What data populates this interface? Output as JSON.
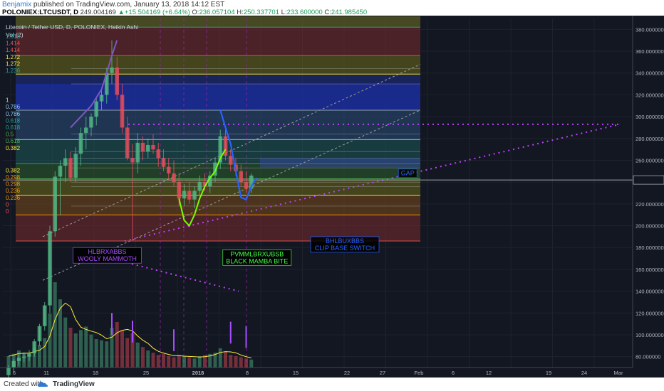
{
  "header": {
    "author": "Benjamix",
    "published_text": "published on TradingView.com, January 13, 2018 14:12 EST",
    "symbol": "POLONIEX:LTCUSDT, D",
    "price": "249.004169",
    "change": "+15.504169 (+6.64%)",
    "ohlc_label_o": "O:",
    "ohlc_o": "236.057104",
    "ohlc_label_h": "H:",
    "ohlc_h": "250.337701",
    "ohlc_label_l": "L:",
    "ohlc_l": "233.600000",
    "ohlc_label_c": "C:",
    "ohlc_c": "241.985450"
  },
  "footer": {
    "created_with": "Created with",
    "brand": "TradingView"
  },
  "chart_data": {
    "type": "candlestick",
    "title": "Litecoin / Tether USD, D, POLONIEX, Heikin Ashi",
    "indicator": "Vol (2)",
    "ylim": [
      70,
      390
    ],
    "y_ticks": [
      "380.000000",
      "360.000000",
      "340.000000",
      "320.000000",
      "300.000000",
      "280.000000",
      "260.000000",
      "240.000000",
      "220.000000",
      "200.000000",
      "180.000000",
      "160.000000",
      "140.000000",
      "120.000000",
      "100.000000",
      "80.000000"
    ],
    "y_tick_values": [
      380,
      360,
      340,
      320,
      300,
      280,
      260,
      240,
      220,
      200,
      180,
      160,
      140,
      120,
      100,
      80
    ],
    "x_ticks": [
      "6",
      "11",
      "18",
      "25",
      "2018",
      "8",
      "15",
      "22",
      "27",
      "Feb",
      "6",
      "12",
      "19",
      "24",
      "Mar"
    ],
    "last_price_level": 242,
    "fib_labels_left": [
      "1.618",
      "1.414",
      "1.414",
      "1.272",
      "1.272",
      "1.236",
      "1",
      "0.786",
      "0.786",
      "0.618",
      "0.618",
      "0.5",
      "0.618",
      "0.382",
      "0.382",
      "0.298",
      "0.298",
      "0.236",
      "0.236",
      "0",
      "0"
    ],
    "fib_label_colors": [
      "#26a69a",
      "#ef5350",
      "#ef5350",
      "#ffeb3b",
      "#ffeb3b",
      "#26a69a",
      "#cfd8dc",
      "#90caf9",
      "#90caf9",
      "#26a69a",
      "#26a69a",
      "#4caf50",
      "#4caf50",
      "#ffeb3b",
      "#ffeb3b",
      "#ff9800",
      "#ff9800",
      "#ff9800",
      "#ff9800",
      "#ef5350",
      "#ef5350"
    ],
    "fib_levels_a": [
      {
        "label": "0",
        "value": 186,
        "color": "#ef5350"
      },
      {
        "label": "0.236",
        "value": 210,
        "color": "#ff9800"
      },
      {
        "label": "0.382",
        "value": 228,
        "color": "#ffeb3b"
      },
      {
        "label": "0.5",
        "value": 243,
        "color": "#4caf50"
      },
      {
        "label": "0.618",
        "value": 257,
        "color": "#26a69a"
      },
      {
        "label": "0.786",
        "value": 279,
        "color": "#90caf9"
      },
      {
        "label": "1",
        "value": 306,
        "color": "#cfd8dc"
      },
      {
        "label": "1.272",
        "value": 339,
        "color": "#ffeb3b"
      },
      {
        "label": "1.414",
        "value": 356,
        "color": "#ef5350"
      },
      {
        "label": "1.618",
        "value": 382,
        "color": "#26a69a"
      }
    ],
    "fib_levels_b": [
      {
        "value": 218
      },
      {
        "value": 236
      },
      {
        "value": 240
      },
      {
        "value": 253
      },
      {
        "value": 262
      },
      {
        "value": 268
      },
      {
        "value": 284
      },
      {
        "value": 330
      },
      {
        "value": 344
      }
    ],
    "annotations": [
      {
        "line1": "HLBRXABBS",
        "line2": "WOOLY MAMMOTH",
        "color": "#a64dff",
        "x_index": 18,
        "price": 180
      },
      {
        "line1": "PVMMLBRXUBSB",
        "line2": "BLACK MAMBA BITE",
        "color": "#44ff44",
        "x_index": 47,
        "price": 178
      },
      {
        "line1": "BHLBUXBBS",
        "line2": "CLIP BASE SWITCH",
        "color": "#2962ff",
        "x_index": 64,
        "price": 190
      },
      {
        "line1": "GAP",
        "line2": "",
        "color": "#2962ff",
        "x_index": 81,
        "price": 252
      }
    ],
    "candles_days": 77,
    "candles": [
      {
        "o": 63,
        "h": 72,
        "l": 58,
        "c": 70
      },
      {
        "o": 70,
        "h": 78,
        "l": 66,
        "c": 76
      },
      {
        "o": 76,
        "h": 82,
        "l": 72,
        "c": 79
      },
      {
        "o": 79,
        "h": 84,
        "l": 75,
        "c": 80
      },
      {
        "o": 80,
        "h": 86,
        "l": 76,
        "c": 83
      },
      {
        "o": 83,
        "h": 96,
        "l": 80,
        "c": 94
      },
      {
        "o": 94,
        "h": 110,
        "l": 90,
        "c": 108
      },
      {
        "o": 108,
        "h": 130,
        "l": 104,
        "c": 127
      },
      {
        "o": 127,
        "h": 200,
        "l": 120,
        "c": 195
      },
      {
        "o": 195,
        "h": 250,
        "l": 190,
        "c": 245
      },
      {
        "o": 245,
        "h": 260,
        "l": 210,
        "c": 255
      },
      {
        "o": 255,
        "h": 270,
        "l": 240,
        "c": 262
      },
      {
        "o": 262,
        "h": 268,
        "l": 240,
        "c": 244
      },
      {
        "o": 244,
        "h": 272,
        "l": 240,
        "c": 266
      },
      {
        "o": 266,
        "h": 290,
        "l": 255,
        "c": 285
      },
      {
        "o": 285,
        "h": 300,
        "l": 270,
        "c": 290
      },
      {
        "o": 290,
        "h": 303,
        "l": 282,
        "c": 300
      },
      {
        "o": 300,
        "h": 318,
        "l": 292,
        "c": 314
      },
      {
        "o": 314,
        "h": 325,
        "l": 306,
        "c": 320
      },
      {
        "o": 320,
        "h": 345,
        "l": 312,
        "c": 340
      },
      {
        "o": 340,
        "h": 370,
        "l": 330,
        "c": 345
      },
      {
        "o": 345,
        "h": 355,
        "l": 315,
        "c": 320
      },
      {
        "o": 320,
        "h": 330,
        "l": 285,
        "c": 290
      },
      {
        "o": 290,
        "h": 300,
        "l": 260,
        "c": 262
      },
      {
        "o": 262,
        "h": 275,
        "l": 186,
        "c": 258
      },
      {
        "o": 258,
        "h": 285,
        "l": 248,
        "c": 276
      },
      {
        "o": 276,
        "h": 282,
        "l": 260,
        "c": 268
      },
      {
        "o": 268,
        "h": 280,
        "l": 262,
        "c": 274
      },
      {
        "o": 274,
        "h": 284,
        "l": 266,
        "c": 270
      },
      {
        "o": 270,
        "h": 276,
        "l": 254,
        "c": 262
      },
      {
        "o": 262,
        "h": 270,
        "l": 250,
        "c": 254
      },
      {
        "o": 254,
        "h": 262,
        "l": 242,
        "c": 248
      },
      {
        "o": 248,
        "h": 260,
        "l": 236,
        "c": 240
      },
      {
        "o": 240,
        "h": 248,
        "l": 218,
        "c": 225
      },
      {
        "o": 225,
        "h": 238,
        "l": 218,
        "c": 232
      },
      {
        "o": 232,
        "h": 240,
        "l": 220,
        "c": 224
      },
      {
        "o": 224,
        "h": 236,
        "l": 216,
        "c": 232
      },
      {
        "o": 232,
        "h": 246,
        "l": 228,
        "c": 240
      },
      {
        "o": 240,
        "h": 248,
        "l": 232,
        "c": 236
      },
      {
        "o": 236,
        "h": 250,
        "l": 230,
        "c": 246
      },
      {
        "o": 246,
        "h": 262,
        "l": 240,
        "c": 258
      },
      {
        "o": 258,
        "h": 288,
        "l": 252,
        "c": 282
      },
      {
        "o": 282,
        "h": 290,
        "l": 260,
        "c": 264
      },
      {
        "o": 264,
        "h": 270,
        "l": 250,
        "c": 256
      },
      {
        "o": 256,
        "h": 262,
        "l": 246,
        "c": 250
      },
      {
        "o": 250,
        "h": 256,
        "l": 236,
        "c": 240
      },
      {
        "o": 240,
        "h": 250,
        "l": 230,
        "c": 234
      },
      {
        "o": 234,
        "h": 248,
        "l": 230,
        "c": 246
      }
    ],
    "volume_note": "Vol (2) histogram in lower pane with moving average lines"
  },
  "colors": {
    "background": "#131722",
    "up": "#53b987",
    "down": "#eb4d5c",
    "axis_text": "#b2b5be",
    "grid": "#2a2e39"
  }
}
